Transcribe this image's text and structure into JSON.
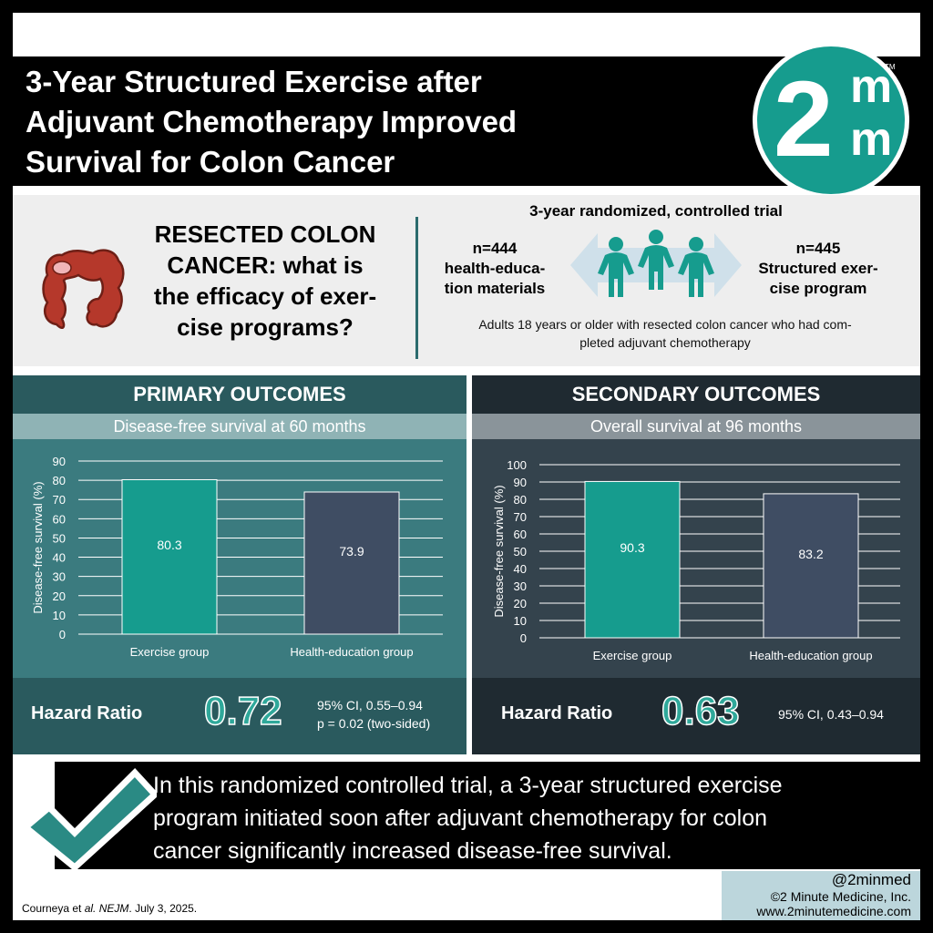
{
  "header": {
    "title_lines": [
      "3-Year Structured Exercise after",
      "Adjuvant Chemotherapy Improved",
      "Survival for Colon Cancer"
    ],
    "logo": {
      "big": "2",
      "top": "m",
      "bottom": "m",
      "tm": "TM"
    }
  },
  "intro": {
    "question_lines": [
      "RESECTED COLON",
      "CANCER: what is",
      "the efficacy of exer-",
      "cise programs?"
    ],
    "trial_title": "3-year randomized, controlled trial",
    "arm_left": [
      "n=444",
      "health-educa-",
      "tion materials"
    ],
    "arm_right": [
      "n=445",
      "Structured exer-",
      "cise program"
    ],
    "population_lines": [
      "Adults 18 years or older with resected colon cancer who had com-",
      "pleted adjuvant chemotherapy"
    ],
    "icons": [
      "colon-icon",
      "people-group-icon",
      "double-arrow-icon"
    ]
  },
  "primary": {
    "heading": "PRIMARY OUTCOMES",
    "subheading": "Disease-free survival at 60 months",
    "hr_label": "Hazard Ratio",
    "hr_value": "0.72",
    "ci_lines": [
      "95% CI, 0.55–0.94",
      "p = 0.02 (two-sided)"
    ]
  },
  "secondary": {
    "heading": "SECONDARY OUTCOMES",
    "subheading": "Overall survival at 96 months",
    "hr_label": "Hazard Ratio",
    "hr_value": "0.63",
    "ci_lines": [
      "95% CI, 0.43–0.94"
    ]
  },
  "chart_data": [
    {
      "type": "bar",
      "title": "",
      "ylabel": "Disease-free survival (%)",
      "xlabel": "",
      "categories": [
        "Exercise group",
        "Health-education group"
      ],
      "values": [
        80.3,
        73.9
      ],
      "value_labels": [
        "80.3",
        "73.9"
      ],
      "ylim": [
        0,
        90
      ],
      "yticks": [
        0,
        10,
        20,
        30,
        40,
        50,
        60,
        70,
        80,
        90
      ],
      "grid": true,
      "colors": [
        "#169c8e",
        "#3f4d63"
      ]
    },
    {
      "type": "bar",
      "title": "",
      "ylabel": "Disease-free survival (%)",
      "xlabel": "",
      "categories": [
        "Exercise group",
        "Health-education group"
      ],
      "values": [
        90.3,
        83.2
      ],
      "value_labels": [
        "90.3",
        "83.2"
      ],
      "ylim": [
        0,
        100
      ],
      "yticks": [
        0,
        10,
        20,
        30,
        40,
        50,
        60,
        70,
        80,
        90,
        100
      ],
      "grid": true,
      "colors": [
        "#169c8e",
        "#3f4d63"
      ]
    }
  ],
  "conclusion": {
    "lines": [
      "In this randomized controlled trial, a 3-year structured exercise",
      "program initiated soon after adjuvant chemotherapy for colon",
      "cancer significantly increased disease-free survival."
    ]
  },
  "footer": {
    "citation_authors": "Courneya et ",
    "citation_etal": "al. NEJM",
    "citation_date": ". July 3, 2025.",
    "handle": "@2minmed",
    "copyright": "©2 Minute Medicine, Inc.",
    "website": "www.2minutemedicine.com"
  },
  "colors": {
    "teal": "#169c8e",
    "dark_teal": "#2a5a5e",
    "slate": "#2f3e48",
    "navy_bar": "#3f4d63"
  }
}
